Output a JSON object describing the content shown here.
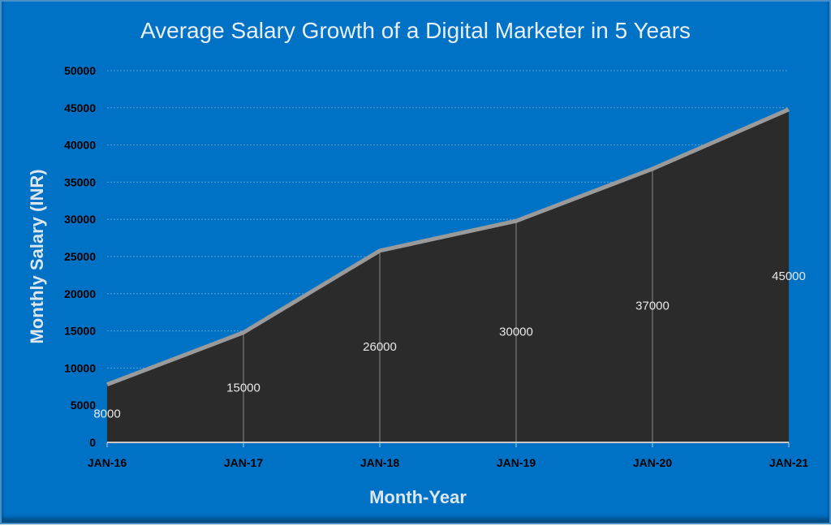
{
  "chart_data": {
    "type": "area",
    "title": "Average Salary Growth of a Digital Marketer in 5 Years",
    "xlabel": "Month-Year",
    "ylabel": "Monthly Salary (INR)",
    "categories": [
      "JAN-16",
      "JAN-17",
      "JAN-18",
      "JAN-19",
      "JAN-20",
      "JAN-21"
    ],
    "values": [
      8000,
      15000,
      26000,
      30000,
      37000,
      45000
    ],
    "data_labels": [
      "8000",
      "15000",
      "26000",
      "30000",
      "37000",
      "45000"
    ],
    "ylim": [
      0,
      50000
    ],
    "yticks": [
      "0",
      "5000",
      "10000",
      "15000",
      "20000",
      "25000",
      "30000",
      "35000",
      "40000",
      "45000",
      "50000"
    ],
    "grid": "horizontal dotted",
    "colors": {
      "background": "#0072C6",
      "area": "#2b2b2b",
      "edge": "#9a9a9a"
    }
  }
}
